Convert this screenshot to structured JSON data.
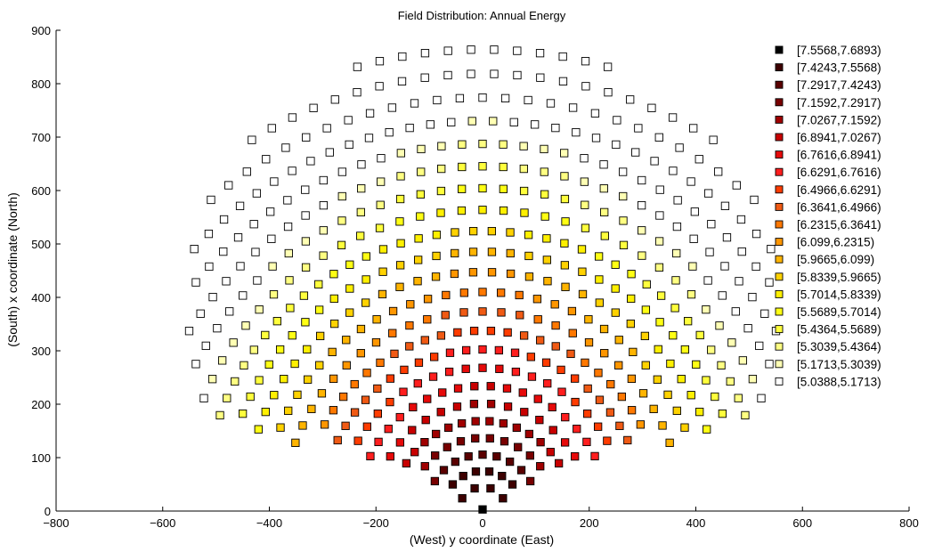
{
  "chart_data": {
    "type": "scatter",
    "title": "Field Distribution:  Annual Energy",
    "xlabel": "(West) y coordinate (East)",
    "ylabel": "(South) x coordinate (North)",
    "xlim": [
      -800,
      800
    ],
    "ylim": [
      0,
      900
    ],
    "xticks": [
      -800,
      -600,
      -400,
      -200,
      0,
      200,
      400,
      600,
      800
    ],
    "yticks": [
      0,
      100,
      200,
      300,
      400,
      500,
      600,
      700,
      800,
      900
    ],
    "xtick_labels": [
      "−800",
      "−600",
      "−400",
      "−200",
      "0",
      "200",
      "400",
      "600",
      "800"
    ],
    "ytick_labels": [
      "0",
      "100",
      "200",
      "300",
      "400",
      "500",
      "600",
      "700",
      "800",
      "900"
    ],
    "legend_position": "top-right",
    "marker": "square",
    "legend": [
      {
        "label": "[7.5568,7.6893)",
        "color": "#000000"
      },
      {
        "label": "[7.4243,7.5568)",
        "color": "#3d0000"
      },
      {
        "label": "[7.2917,7.4243)",
        "color": "#5a0000"
      },
      {
        "label": "[7.1592,7.2917)",
        "color": "#780000"
      },
      {
        "label": "[7.0267,7.1592)",
        "color": "#a00000"
      },
      {
        "label": "[6.8941,7.0267)",
        "color": "#c80000"
      },
      {
        "label": "[6.7616,6.8941)",
        "color": "#e60a0a"
      },
      {
        "label": "[6.6291,6.7616)",
        "color": "#ff1e1e"
      },
      {
        "label": "[6.4966,6.6291)",
        "color": "#ff3c00"
      },
      {
        "label": "[6.3641,6.4966)",
        "color": "#f05a14"
      },
      {
        "label": "[6.2315,6.3641)",
        "color": "#ff7800"
      },
      {
        "label": "[6.099,6.2315)",
        "color": "#ff9600"
      },
      {
        "label": "[5.9665,6.099)",
        "color": "#ffb400"
      },
      {
        "label": "[5.8339,5.9665)",
        "color": "#ffd200"
      },
      {
        "label": "[5.7014,5.8339)",
        "color": "#fff000"
      },
      {
        "label": "[5.5689,5.7014)",
        "color": "#ffff14"
      },
      {
        "label": "[5.4364,5.5689)",
        "color": "#ffff3c"
      },
      {
        "label": "[5.3039,5.4364)",
        "color": "#ffff82"
      },
      {
        "label": "[5.1713,5.3039)",
        "color": "#ffffb4"
      },
      {
        "label": "[5.0388,5.1713)",
        "color": "#ffffff"
      }
    ]
  }
}
